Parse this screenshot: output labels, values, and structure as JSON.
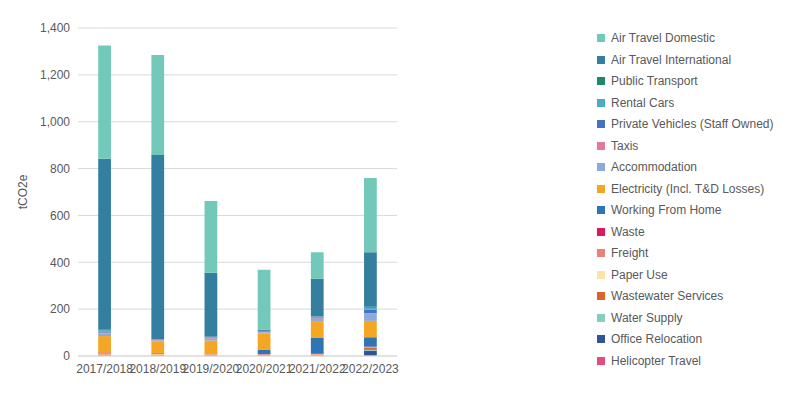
{
  "chart_data": {
    "type": "bar",
    "stacked": true,
    "grid": true,
    "legend": "right",
    "y_label": "tCO2e",
    "categories": [
      "2017/2018",
      "2018/2019",
      "2019/2020",
      "2020/2021",
      "2021/2022",
      "2022/2023"
    ],
    "ylim": [
      0,
      1400
    ],
    "yticks": [
      0,
      200,
      400,
      600,
      800,
      {
        "value": 1000,
        "label": "1,000"
      },
      {
        "value": 1200,
        "label": "1,200"
      },
      {
        "value": 1400,
        "label": "1,400"
      }
    ],
    "series": [
      {
        "name": "Air Travel Domestic",
        "color": "#72C9B9",
        "values": [
          483,
          427,
          307,
          256,
          113,
          317
        ]
      },
      {
        "name": "Air Travel International",
        "color": "#347F9F",
        "values": [
          730,
          786,
          273,
          5,
          161,
          233
        ]
      },
      {
        "name": "Public Transport",
        "color": "#1B8A6B",
        "values": [
          2,
          0,
          0,
          0,
          1,
          4
        ]
      },
      {
        "name": "Rental Cars",
        "color": "#4BACC6",
        "values": [
          5,
          2,
          3,
          2,
          3,
          8
        ]
      },
      {
        "name": "Private Vehicles (Staff Owned)",
        "color": "#4472C4",
        "values": [
          5,
          2,
          3,
          3,
          4,
          15
        ]
      },
      {
        "name": "Taxis",
        "color": "#E377A0",
        "values": [
          3,
          2,
          2,
          1,
          2,
          3
        ]
      },
      {
        "name": "Accommodation",
        "color": "#8EA9DB",
        "values": [
          12,
          5,
          8,
          5,
          10,
          30
        ]
      },
      {
        "name": "Electricity (Incl. T&D Losses)",
        "color": "#F5A623",
        "values": [
          70,
          48,
          55,
          70,
          72,
          70
        ]
      },
      {
        "name": "Working From Home",
        "color": "#2E75B6",
        "values": [
          0,
          0,
          0,
          18,
          65,
          40
        ]
      },
      {
        "name": "Waste",
        "color": "#E0195A",
        "values": [
          3,
          2,
          2,
          1,
          3,
          2
        ]
      },
      {
        "name": "Freight",
        "color": "#E8837A",
        "values": [
          3,
          3,
          2,
          1,
          2,
          3
        ]
      },
      {
        "name": "Paper Use",
        "color": "#FCE4A8",
        "values": [
          2,
          2,
          1,
          1,
          1,
          1
        ]
      },
      {
        "name": "Wastewater Services",
        "color": "#E0622B",
        "values": [
          5,
          4,
          4,
          3,
          4,
          8
        ]
      },
      {
        "name": "Water Supply",
        "color": "#7FD0C0",
        "values": [
          2,
          2,
          2,
          2,
          2,
          3
        ]
      },
      {
        "name": "Office Relocation",
        "color": "#2F5597",
        "values": [
          0,
          0,
          0,
          0,
          0,
          20
        ]
      },
      {
        "name": "Helicopter Travel",
        "color": "#E0507A",
        "values": [
          0,
          0,
          0,
          0,
          0,
          3
        ]
      }
    ]
  }
}
